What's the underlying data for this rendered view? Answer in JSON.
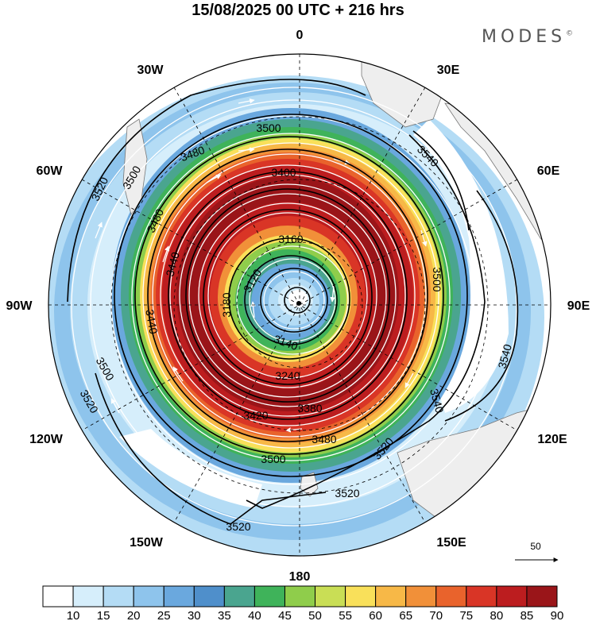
{
  "title": "15/08/2025  00 UTC  + 216 hrs",
  "brand": "MODES",
  "brand_mark": "©",
  "longitude_labels": [
    {
      "text": "0",
      "lon": 0
    },
    {
      "text": "30E",
      "lon": 30
    },
    {
      "text": "60E",
      "lon": 60
    },
    {
      "text": "90E",
      "lon": 90
    },
    {
      "text": "120E",
      "lon": 120
    },
    {
      "text": "150E",
      "lon": 150
    },
    {
      "text": "180",
      "lon": 180
    },
    {
      "text": "150W",
      "lon": -150
    },
    {
      "text": "120W",
      "lon": -120
    },
    {
      "text": "90W",
      "lon": -90
    },
    {
      "text": "60W",
      "lon": -60
    },
    {
      "text": "30W",
      "lon": -30
    }
  ],
  "contour_labels": [
    "3500",
    "3480",
    "3540",
    "3520",
    "3480",
    "3400",
    "3160",
    "3120",
    "3440",
    "3180",
    "3500",
    "3440",
    "3140",
    "3240",
    "3500",
    "3520",
    "3420",
    "3380",
    "3540",
    "3480",
    "3500",
    "3520",
    "3520",
    "3540",
    "3520",
    "3500"
  ],
  "colorbar": {
    "ticks": [
      "10",
      "15",
      "20",
      "25",
      "30",
      "35",
      "40",
      "45",
      "50",
      "55",
      "60",
      "65",
      "70",
      "75",
      "80",
      "85",
      "90"
    ],
    "colors": [
      "#ffffff",
      "#d6eefb",
      "#b4dcf5",
      "#8ec4ec",
      "#6aa8de",
      "#4f8fcb",
      "#4aa58f",
      "#3fb35a",
      "#8fcd4b",
      "#c9de55",
      "#f9e05a",
      "#f7b847",
      "#f19039",
      "#e9632c",
      "#d93526",
      "#bc1d1f",
      "#9a1519"
    ]
  },
  "vector_scale": {
    "label": "50"
  }
}
